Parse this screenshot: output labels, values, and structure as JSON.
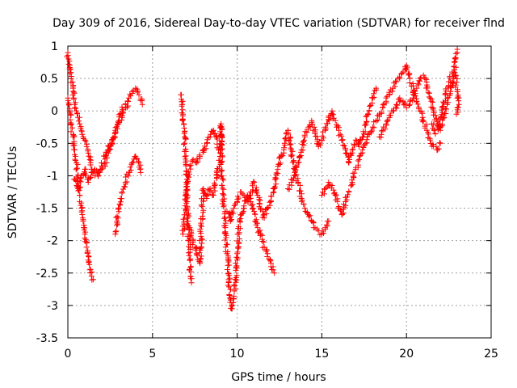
{
  "chart_data": {
    "type": "scatter",
    "title": "Day 309 of 2016, Sidereal Day-to-day VTEC variation (SDTVAR) for receiver flnd",
    "xlabel": "GPS time / hours",
    "ylabel": "SDTVAR / TECUs",
    "xlim": [
      0,
      25
    ],
    "ylim": [
      -3.5,
      1
    ],
    "xticks": [
      {
        "value": 0,
        "label": "0"
      },
      {
        "value": 5,
        "label": "5"
      },
      {
        "value": 10,
        "label": "10"
      },
      {
        "value": 15,
        "label": "15"
      },
      {
        "value": 20,
        "label": "20"
      },
      {
        "value": 25,
        "label": "25"
      }
    ],
    "yticks": [
      {
        "value": 1,
        "label": "1"
      },
      {
        "value": 0.5,
        "label": "0.5"
      },
      {
        "value": 0,
        "label": "0"
      },
      {
        "value": -0.5,
        "label": "-0.5"
      },
      {
        "value": -1,
        "label": "-1"
      },
      {
        "value": -1.5,
        "label": "-1.5"
      },
      {
        "value": -2,
        "label": "-2"
      },
      {
        "value": -2.5,
        "label": "-2.5"
      },
      {
        "value": -3,
        "label": "-3"
      },
      {
        "value": -3.5,
        "label": "-3.5"
      }
    ],
    "grid": true,
    "marker": "+",
    "marker_color": "#ff0000",
    "series": [
      {
        "points": [
          [
            0.0,
            0.9
          ],
          [
            0.05,
            0.8
          ],
          [
            0.1,
            0.65
          ],
          [
            0.2,
            0.5
          ],
          [
            0.3,
            0.35
          ],
          [
            0.35,
            0.2
          ],
          [
            0.4,
            0.1
          ],
          [
            0.5,
            0.0
          ],
          [
            0.6,
            -0.1
          ],
          [
            0.7,
            -0.2
          ],
          [
            0.8,
            -0.3
          ],
          [
            0.9,
            -0.4
          ],
          [
            1.0,
            -0.45
          ],
          [
            1.1,
            -0.55
          ],
          [
            1.2,
            -0.65
          ],
          [
            1.3,
            -0.75
          ],
          [
            1.4,
            -0.9
          ],
          [
            1.6,
            -1.0
          ],
          [
            1.8,
            -0.95
          ],
          [
            2.0,
            -0.9
          ],
          [
            2.2,
            -0.8
          ],
          [
            2.4,
            -0.65
          ],
          [
            2.6,
            -0.5
          ],
          [
            2.8,
            -0.35
          ],
          [
            3.0,
            -0.2
          ],
          [
            3.2,
            -0.1
          ],
          [
            3.4,
            0.05
          ],
          [
            3.6,
            0.2
          ],
          [
            3.8,
            0.3
          ],
          [
            4.0,
            0.35
          ],
          [
            4.2,
            0.25
          ],
          [
            4.4,
            0.1
          ]
        ]
      },
      {
        "points": [
          [
            0.0,
            0.2
          ],
          [
            0.1,
            0.0
          ],
          [
            0.2,
            -0.2
          ],
          [
            0.3,
            -0.4
          ],
          [
            0.4,
            -0.6
          ],
          [
            0.5,
            -0.8
          ],
          [
            0.6,
            -1.05
          ],
          [
            0.7,
            -1.3
          ],
          [
            0.8,
            -1.5
          ],
          [
            0.9,
            -1.7
          ],
          [
            1.0,
            -1.9
          ],
          [
            1.1,
            -2.1
          ],
          [
            1.2,
            -2.3
          ],
          [
            1.3,
            -2.45
          ],
          [
            1.4,
            -2.55
          ],
          [
            1.5,
            -2.6
          ]
        ]
      },
      {
        "points": [
          [
            0.4,
            -1.05
          ],
          [
            0.6,
            -1.2
          ],
          [
            0.8,
            -1.0
          ],
          [
            1.0,
            -0.9
          ],
          [
            1.2,
            -1.1
          ],
          [
            1.4,
            -0.95
          ],
          [
            1.6,
            -0.9
          ],
          [
            1.8,
            -1.0
          ],
          [
            2.0,
            -0.85
          ],
          [
            2.2,
            -0.7
          ],
          [
            2.4,
            -0.6
          ],
          [
            2.6,
            -0.45
          ],
          [
            2.8,
            -0.3
          ],
          [
            3.0,
            -0.15
          ],
          [
            3.2,
            0.0
          ],
          [
            3.4,
            0.1
          ]
        ]
      },
      {
        "points": [
          [
            2.8,
            -1.9
          ],
          [
            2.9,
            -1.7
          ],
          [
            3.0,
            -1.5
          ],
          [
            3.1,
            -1.35
          ],
          [
            3.2,
            -1.25
          ],
          [
            3.4,
            -1.1
          ],
          [
            3.6,
            -0.95
          ],
          [
            3.8,
            -0.8
          ],
          [
            4.0,
            -0.7
          ],
          [
            4.2,
            -0.8
          ],
          [
            4.3,
            -0.95
          ]
        ]
      },
      {
        "points": [
          [
            6.7,
            0.25
          ],
          [
            6.75,
            0.1
          ],
          [
            6.8,
            -0.05
          ],
          [
            6.85,
            -0.2
          ],
          [
            6.9,
            -0.5
          ],
          [
            6.95,
            -0.8
          ],
          [
            7.0,
            -1.1
          ],
          [
            7.05,
            -1.4
          ],
          [
            7.1,
            -1.7
          ],
          [
            7.15,
            -2.0
          ],
          [
            7.2,
            -2.3
          ],
          [
            7.25,
            -2.55
          ],
          [
            7.3,
            -2.65
          ]
        ]
      },
      {
        "points": [
          [
            6.8,
            -1.9
          ],
          [
            6.9,
            -1.6
          ],
          [
            7.0,
            -1.3
          ],
          [
            7.1,
            -1.0
          ],
          [
            7.2,
            -0.85
          ],
          [
            7.4,
            -0.75
          ],
          [
            7.6,
            -0.8
          ],
          [
            7.8,
            -0.7
          ],
          [
            8.0,
            -0.6
          ],
          [
            8.2,
            -0.5
          ],
          [
            8.4,
            -0.4
          ],
          [
            8.6,
            -0.3
          ],
          [
            8.8,
            -0.4
          ],
          [
            8.9,
            -0.6
          ]
        ]
      },
      {
        "points": [
          [
            7.2,
            -1.8
          ],
          [
            7.4,
            -2.0
          ],
          [
            7.6,
            -2.2
          ],
          [
            7.8,
            -2.35
          ],
          [
            8.0,
            -1.2
          ],
          [
            8.2,
            -1.35
          ],
          [
            8.4,
            -1.2
          ],
          [
            8.6,
            -1.3
          ],
          [
            8.8,
            -0.95
          ],
          [
            9.0,
            -0.7
          ],
          [
            9.05,
            -0.2
          ],
          [
            9.1,
            -1.0
          ],
          [
            9.2,
            -1.4
          ],
          [
            9.3,
            -1.8
          ],
          [
            9.4,
            -2.2
          ],
          [
            9.5,
            -2.6
          ],
          [
            9.6,
            -2.9
          ],
          [
            9.7,
            -3.05
          ],
          [
            9.8,
            -2.9
          ],
          [
            9.9,
            -2.6
          ],
          [
            10.0,
            -2.2
          ],
          [
            10.1,
            -1.9
          ],
          [
            10.2,
            -1.6
          ],
          [
            10.4,
            -1.5
          ],
          [
            10.6,
            -1.3
          ],
          [
            10.8,
            -1.4
          ],
          [
            11.0,
            -1.55
          ],
          [
            11.2,
            -1.8
          ],
          [
            11.4,
            -1.9
          ],
          [
            11.6,
            -2.1
          ],
          [
            11.8,
            -2.2
          ],
          [
            12.0,
            -2.35
          ],
          [
            12.2,
            -2.5
          ]
        ]
      },
      {
        "points": [
          [
            9.4,
            -1.55
          ],
          [
            9.6,
            -1.7
          ],
          [
            9.8,
            -1.5
          ],
          [
            10.0,
            -1.4
          ],
          [
            10.2,
            -1.25
          ],
          [
            10.4,
            -1.3
          ],
          [
            10.6,
            -1.4
          ],
          [
            10.8,
            -1.25
          ],
          [
            11.0,
            -1.1
          ],
          [
            11.2,
            -1.3
          ],
          [
            11.4,
            -1.5
          ],
          [
            11.6,
            -1.65
          ],
          [
            11.8,
            -1.5
          ],
          [
            12.0,
            -1.4
          ],
          [
            12.2,
            -1.2
          ],
          [
            12.4,
            -0.9
          ],
          [
            12.6,
            -0.7
          ],
          [
            12.8,
            -0.5
          ],
          [
            13.0,
            -0.3
          ],
          [
            13.2,
            -0.6
          ],
          [
            13.4,
            -0.9
          ],
          [
            13.6,
            -1.1
          ],
          [
            13.8,
            -1.35
          ],
          [
            14.0,
            -1.5
          ],
          [
            14.2,
            -1.6
          ],
          [
            14.4,
            -1.7
          ],
          [
            14.6,
            -1.8
          ],
          [
            14.8,
            -1.85
          ],
          [
            15.0,
            -1.9
          ],
          [
            15.2,
            -1.8
          ],
          [
            15.4,
            -1.7
          ]
        ]
      },
      {
        "points": [
          [
            13.0,
            -1.2
          ],
          [
            13.2,
            -1.1
          ],
          [
            13.4,
            -0.95
          ],
          [
            13.6,
            -0.8
          ],
          [
            13.8,
            -0.6
          ],
          [
            14.0,
            -0.4
          ],
          [
            14.2,
            -0.25
          ],
          [
            14.4,
            -0.15
          ],
          [
            14.6,
            -0.35
          ],
          [
            14.8,
            -0.55
          ],
          [
            15.0,
            -0.45
          ],
          [
            15.2,
            -0.3
          ],
          [
            15.4,
            -0.1
          ],
          [
            15.6,
            0.0
          ],
          [
            15.8,
            -0.15
          ],
          [
            16.0,
            -0.3
          ],
          [
            16.2,
            -0.45
          ],
          [
            16.4,
            -0.6
          ],
          [
            16.6,
            -0.8
          ],
          [
            16.8,
            -0.6
          ],
          [
            17.0,
            -0.45
          ],
          [
            17.2,
            -0.55
          ],
          [
            17.4,
            -0.4
          ],
          [
            17.6,
            -0.2
          ],
          [
            17.8,
            0.0
          ],
          [
            18.0,
            0.2
          ],
          [
            18.2,
            0.35
          ]
        ]
      },
      {
        "points": [
          [
            15.0,
            -1.3
          ],
          [
            15.2,
            -1.2
          ],
          [
            15.4,
            -1.1
          ],
          [
            15.6,
            -1.15
          ],
          [
            15.8,
            -1.3
          ],
          [
            16.0,
            -1.5
          ],
          [
            16.2,
            -1.6
          ],
          [
            16.4,
            -1.4
          ],
          [
            16.6,
            -1.25
          ],
          [
            16.8,
            -1.1
          ],
          [
            17.0,
            -0.9
          ],
          [
            17.2,
            -0.75
          ],
          [
            17.4,
            -0.6
          ],
          [
            17.6,
            -0.5
          ],
          [
            17.8,
            -0.35
          ],
          [
            18.0,
            -0.25
          ],
          [
            18.2,
            -0.15
          ],
          [
            18.4,
            -0.05
          ],
          [
            18.6,
            0.05
          ],
          [
            18.8,
            0.15
          ],
          [
            19.0,
            0.25
          ],
          [
            19.2,
            0.35
          ],
          [
            19.4,
            0.45
          ],
          [
            19.6,
            0.5
          ],
          [
            19.8,
            0.6
          ],
          [
            20.0,
            0.7
          ],
          [
            20.2,
            0.5
          ],
          [
            20.4,
            0.3
          ],
          [
            20.6,
            0.15
          ],
          [
            20.8,
            0.0
          ],
          [
            21.0,
            -0.15
          ],
          [
            21.2,
            -0.3
          ],
          [
            21.4,
            -0.45
          ],
          [
            21.6,
            -0.55
          ],
          [
            21.8,
            -0.6
          ],
          [
            22.0,
            -0.5
          ]
        ]
      },
      {
        "points": [
          [
            18.4,
            -0.4
          ],
          [
            18.6,
            -0.3
          ],
          [
            18.8,
            -0.2
          ],
          [
            19.0,
            -0.1
          ],
          [
            19.2,
            0.0
          ],
          [
            19.4,
            0.1
          ],
          [
            19.6,
            0.2
          ],
          [
            19.8,
            0.15
          ],
          [
            20.0,
            0.05
          ],
          [
            20.2,
            0.1
          ],
          [
            20.4,
            0.2
          ],
          [
            20.6,
            0.35
          ],
          [
            20.8,
            0.5
          ],
          [
            21.0,
            0.55
          ],
          [
            21.2,
            0.4
          ],
          [
            21.4,
            0.2
          ],
          [
            21.6,
            0.0
          ],
          [
            21.8,
            -0.2
          ],
          [
            22.0,
            -0.3
          ],
          [
            22.2,
            -0.1
          ],
          [
            22.4,
            0.1
          ],
          [
            22.6,
            0.3
          ],
          [
            22.8,
            0.5
          ],
          [
            22.9,
            0.8
          ],
          [
            23.0,
            0.95
          ]
        ]
      },
      {
        "points": [
          [
            21.5,
            -0.2
          ],
          [
            21.7,
            -0.35
          ],
          [
            21.9,
            -0.25
          ],
          [
            22.1,
            0.05
          ],
          [
            22.3,
            0.25
          ],
          [
            22.5,
            0.45
          ],
          [
            22.7,
            0.6
          ],
          [
            22.9,
            0.55
          ],
          [
            23.0,
            0.3
          ],
          [
            23.1,
            0.1
          ],
          [
            22.95,
            -0.05
          ]
        ]
      }
    ]
  }
}
